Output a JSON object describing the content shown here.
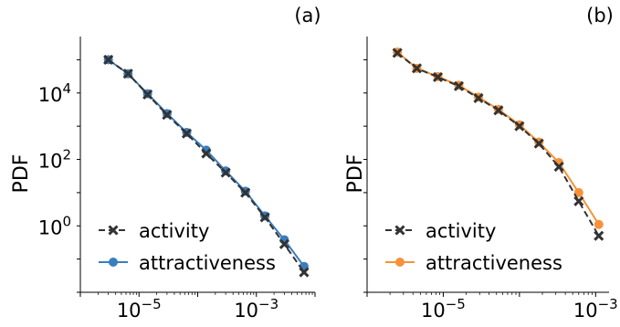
{
  "chart_data": [
    {
      "type": "line",
      "panel_label": "(a)",
      "ylabel": "PDF",
      "xscale": "log",
      "yscale": "log",
      "xlim": [
        1e-06,
        0.01
      ],
      "ylim": [
        0.01,
        500000
      ],
      "xticks": [
        {
          "value": 1e-05,
          "base": "10",
          "exp": "−5"
        },
        {
          "value": 0.001,
          "base": "10",
          "exp": "−3"
        }
      ],
      "yticks": [
        {
          "value": 1,
          "base": "10",
          "exp": "0"
        },
        {
          "value": 100,
          "base": "10",
          "exp": "2"
        },
        {
          "value": 10000,
          "base": "10",
          "exp": "4"
        }
      ],
      "grid": false,
      "legend_position": "lower-left",
      "series": [
        {
          "name": "activity",
          "color": "#333333",
          "marker": "x",
          "linestyle": "dashed",
          "x": [
            3e-06,
            6.5e-06,
            1.4e-05,
            3e-05,
            6.5e-05,
            0.00014,
            0.0003,
            0.00065,
            0.0014,
            0.003,
            0.0065
          ],
          "y": [
            100000,
            38000,
            9000,
            2200,
            600,
            150,
            40,
            10,
            1.8,
            0.28,
            0.04
          ]
        },
        {
          "name": "attractiveness",
          "color": "#3a7dbf",
          "marker": "o",
          "linestyle": "solid",
          "x": [
            3e-06,
            6.5e-06,
            1.4e-05,
            3e-05,
            6.5e-05,
            0.00014,
            0.0003,
            0.00065,
            0.0014,
            0.003,
            0.0065
          ],
          "y": [
            100000,
            38000,
            9500,
            2400,
            650,
            190,
            45,
            11,
            2.0,
            0.38,
            0.06
          ]
        }
      ]
    },
    {
      "type": "line",
      "panel_label": "(b)",
      "ylabel": "PDF",
      "xscale": "log",
      "yscale": "log",
      "xlim": [
        1e-06,
        0.0015
      ],
      "ylim": [
        0.01,
        500000
      ],
      "xticks": [
        {
          "value": 1e-05,
          "base": "10",
          "exp": "−5"
        },
        {
          "value": 0.001,
          "base": "10",
          "exp": "−3"
        }
      ],
      "yticks": [],
      "grid": false,
      "legend_position": "lower-left",
      "series": [
        {
          "name": "activity",
          "color": "#333333",
          "marker": "x",
          "linestyle": "dashed",
          "x": [
            2.5e-06,
            4.5e-06,
            8.5e-06,
            1.6e-05,
            2.9e-05,
            5.3e-05,
            0.0001,
            0.00018,
            0.00033,
            0.0006,
            0.0011
          ],
          "y": [
            160000,
            55000,
            30000,
            16000,
            7000,
            3000,
            1000,
            300,
            60,
            5.5,
            0.5
          ]
        },
        {
          "name": "attractiveness",
          "color": "#f7923a",
          "marker": "o",
          "linestyle": "solid",
          "x": [
            2.5e-06,
            4.5e-06,
            8.5e-06,
            1.6e-05,
            2.9e-05,
            5.3e-05,
            0.0001,
            0.00018,
            0.00033,
            0.0006,
            0.0011
          ],
          "y": [
            170000,
            55000,
            31000,
            17000,
            7500,
            3200,
            1100,
            330,
            80,
            10,
            1.1
          ]
        }
      ]
    }
  ]
}
